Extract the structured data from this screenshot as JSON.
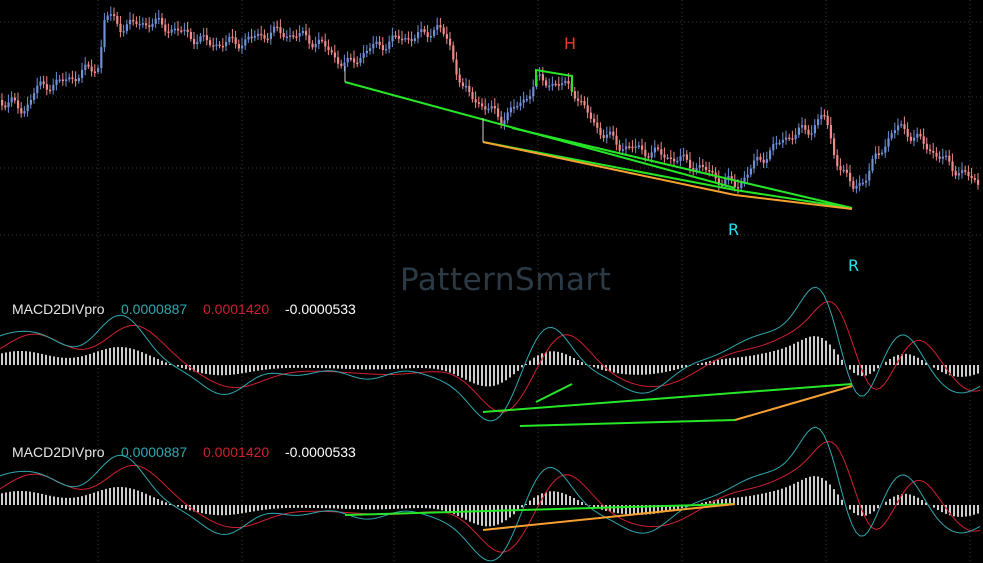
{
  "watermark": "PatternSmart",
  "colors": {
    "background": "#000000",
    "grid": "#3a3a3a",
    "candle_up": "#6f8fd6",
    "candle_down": "#f08a8a",
    "pattern_line": "#27e527",
    "support_line": "#f5a030",
    "signal_line": "#d02030",
    "macd_line": "#2fa8b0",
    "histogram": "#ffffff",
    "label_h": "#f03a2a",
    "label_r": "#26e0f0"
  },
  "price_panel": {
    "labels": [
      {
        "id": "h",
        "text": "H"
      },
      {
        "id": "r1",
        "text": "R"
      },
      {
        "id": "r2",
        "text": "R"
      }
    ]
  },
  "indicator_panels": [
    {
      "name": "MACD2DIVpro",
      "values": [
        "0.0000887",
        "0.0001420",
        "-0.0000533"
      ]
    },
    {
      "name": "MACD2DIVpro",
      "values": [
        "0.0000887",
        "0.0001420",
        "-0.0000533"
      ]
    }
  ],
  "chart_data": [
    {
      "type": "candlestick",
      "title": "",
      "annotations": [
        "H",
        "R",
        "R"
      ],
      "grid": true,
      "description_series": "price candles with head pattern H and two R points, green trend lines and orange support lines"
    },
    {
      "type": "bar",
      "title": "MACD2DIVpro",
      "series": [
        {
          "name": "MACD2DIVpro",
          "values": [
            8.87e-05
          ]
        },
        {
          "name": "MACD2DIVpro",
          "values": [
            0.000142
          ]
        },
        {
          "name": "MACD2DIVpro",
          "values": [
            -5.33e-05
          ]
        }
      ]
    },
    {
      "type": "bar",
      "title": "MACD2DIVpro",
      "series": [
        {
          "name": "MACD2DIVpro",
          "values": [
            8.87e-05
          ]
        },
        {
          "name": "MACD2DIVpro",
          "values": [
            0.000142
          ]
        },
        {
          "name": "MACD2DIVpro",
          "values": [
            -5.33e-05
          ]
        }
      ]
    }
  ]
}
